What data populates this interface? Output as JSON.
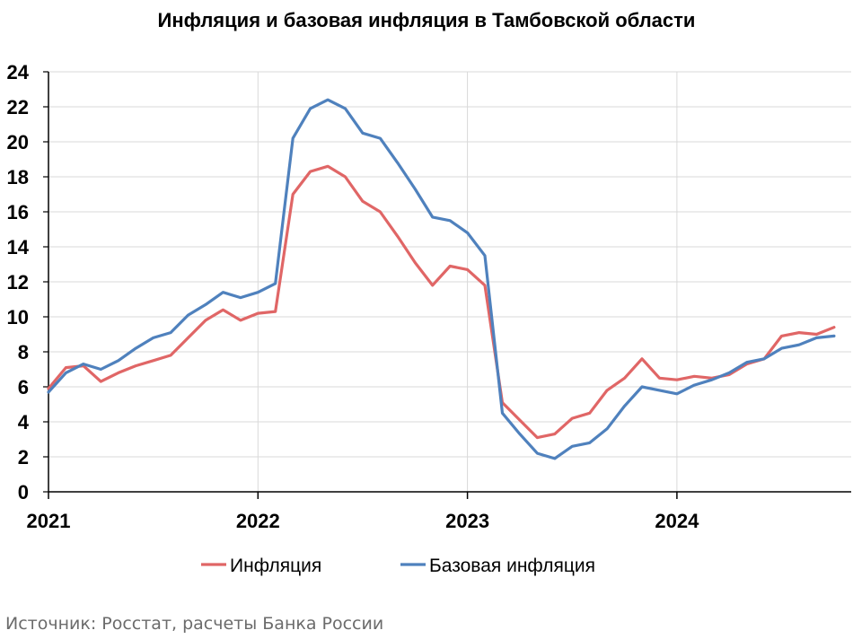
{
  "chart_data": {
    "type": "line",
    "title": "Инфляция и базовая инфляция в Тамбовской области",
    "xlabel": "",
    "ylabel": "",
    "ylim": [
      0,
      24
    ],
    "y_ticks": [
      "0",
      "2",
      "4",
      "6",
      "8",
      "10",
      "12",
      "14",
      "16",
      "18",
      "20",
      "22",
      "24"
    ],
    "x_ticks": [
      "2021",
      "2022",
      "2023",
      "2024"
    ],
    "grid": true,
    "legend_position": "bottom",
    "x": [
      "2021-01",
      "2021-02",
      "2021-03",
      "2021-04",
      "2021-05",
      "2021-06",
      "2021-07",
      "2021-08",
      "2021-09",
      "2021-10",
      "2021-11",
      "2021-12",
      "2022-01",
      "2022-02",
      "2022-03",
      "2022-04",
      "2022-05",
      "2022-06",
      "2022-07",
      "2022-08",
      "2022-09",
      "2022-10",
      "2022-11",
      "2022-12",
      "2023-01",
      "2023-02",
      "2023-03",
      "2023-04",
      "2023-05",
      "2023-06",
      "2023-07",
      "2023-08",
      "2023-09",
      "2023-10",
      "2023-11",
      "2023-12",
      "2024-01",
      "2024-02",
      "2024-03",
      "2024-04",
      "2024-05",
      "2024-06",
      "2024-07",
      "2024-08",
      "2024-09",
      "2024-10"
    ],
    "series": [
      {
        "name": "Инфляция",
        "color": "#e06666",
        "values": [
          5.9,
          7.1,
          7.2,
          6.3,
          6.8,
          7.2,
          7.5,
          7.8,
          8.8,
          9.8,
          10.4,
          9.8,
          10.2,
          10.3,
          17.0,
          18.3,
          18.6,
          18.0,
          16.6,
          16.0,
          14.6,
          13.1,
          11.8,
          12.9,
          12.7,
          11.8,
          5.1,
          4.1,
          3.1,
          3.3,
          4.2,
          4.5,
          5.8,
          6.5,
          7.6,
          6.5,
          6.4,
          6.6,
          6.5,
          6.7,
          7.3,
          7.6,
          8.9,
          9.1,
          9.0,
          9.4
        ]
      },
      {
        "name": "Базовая инфляция",
        "color": "#4f81bd",
        "values": [
          5.7,
          6.8,
          7.3,
          7.0,
          7.5,
          8.2,
          8.8,
          9.1,
          10.1,
          10.7,
          11.4,
          11.1,
          11.4,
          11.9,
          20.2,
          21.9,
          22.4,
          21.9,
          20.5,
          20.2,
          18.8,
          17.3,
          15.7,
          15.5,
          14.8,
          13.5,
          4.5,
          3.3,
          2.2,
          1.9,
          2.6,
          2.8,
          3.6,
          4.9,
          6.0,
          5.8,
          5.6,
          6.1,
          6.4,
          6.8,
          7.4,
          7.6,
          8.2,
          8.4,
          8.8,
          8.9
        ]
      }
    ]
  },
  "source": "Источник: Росстат, расчеты Банка России"
}
